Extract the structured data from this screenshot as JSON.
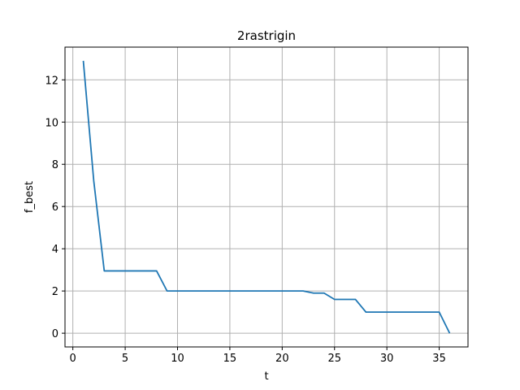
{
  "chart_data": {
    "type": "line",
    "title": "2rastrigin",
    "xlabel": "t",
    "ylabel": "f_best",
    "xlim": [
      -0.75,
      37.75
    ],
    "ylim": [
      -0.65,
      13.55
    ],
    "xticks": [
      0,
      5,
      10,
      15,
      20,
      25,
      30,
      35
    ],
    "yticks": [
      0,
      2,
      4,
      6,
      8,
      10,
      12
    ],
    "grid": true,
    "legend": "none",
    "series": [
      {
        "color": "#1f77b4",
        "x": [
          1,
          2,
          3,
          4,
          5,
          6,
          7,
          8,
          9,
          10,
          11,
          12,
          13,
          14,
          15,
          16,
          17,
          18,
          19,
          20,
          21,
          22,
          23,
          24,
          25,
          26,
          27,
          28,
          29,
          30,
          31,
          32,
          33,
          34,
          35,
          36
        ],
        "y": [
          12.9,
          7.2,
          2.95,
          2.95,
          2.95,
          2.95,
          2.95,
          2.95,
          2.0,
          2.0,
          2.0,
          2.0,
          2.0,
          2.0,
          2.0,
          2.0,
          2.0,
          2.0,
          2.0,
          2.0,
          2.0,
          2.0,
          1.9,
          1.9,
          1.6,
          1.6,
          1.6,
          1.0,
          1.0,
          1.0,
          1.0,
          1.0,
          1.0,
          1.0,
          1.0,
          0.0
        ]
      }
    ]
  }
}
